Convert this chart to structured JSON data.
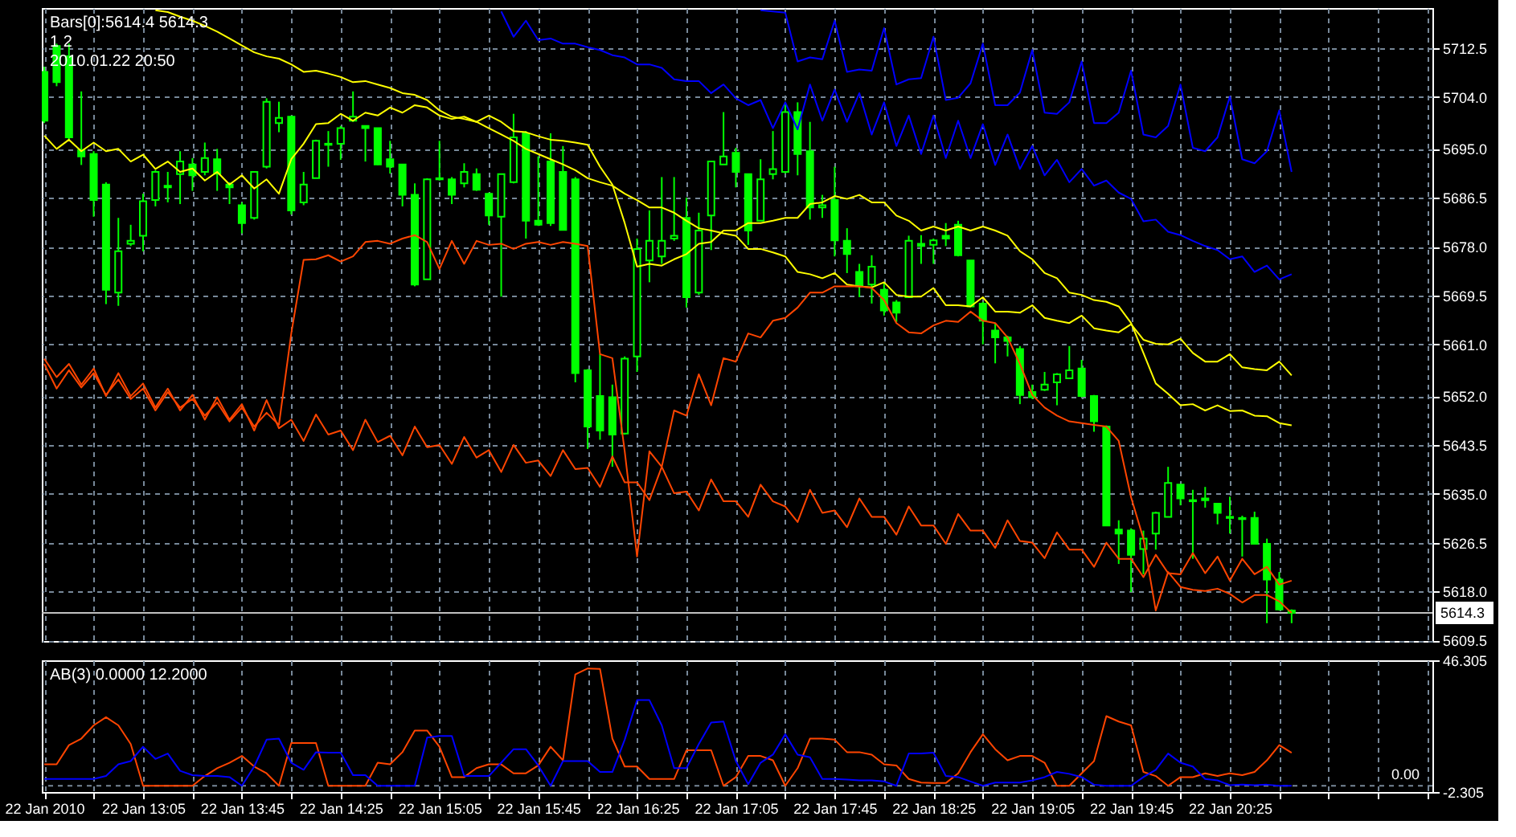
{
  "chart_data": [
    {
      "type": "candlestick",
      "x": [
        "2010-01-22T12:25",
        "2010-01-22T12:30",
        "2010-01-22T12:35",
        "2010-01-22T12:40",
        "2010-01-22T12:45",
        "2010-01-22T12:50",
        "2010-01-22T12:55",
        "2010-01-22T13:00",
        "2010-01-22T13:05",
        "2010-01-22T13:10",
        "2010-01-22T13:15",
        "2010-01-22T13:20",
        "2010-01-22T13:25",
        "2010-01-22T13:30",
        "2010-01-22T13:35",
        "2010-01-22T13:40",
        "2010-01-22T13:45",
        "2010-01-22T13:50",
        "2010-01-22T13:55",
        "2010-01-22T14:00",
        "2010-01-22T14:05",
        "2010-01-22T14:10",
        "2010-01-22T14:15",
        "2010-01-22T14:20",
        "2010-01-22T14:25",
        "2010-01-22T14:30",
        "2010-01-22T14:35",
        "2010-01-22T14:40",
        "2010-01-22T14:45",
        "2010-01-22T14:50",
        "2010-01-22T14:55",
        "2010-01-22T15:00",
        "2010-01-22T15:05",
        "2010-01-22T15:10",
        "2010-01-22T15:15",
        "2010-01-22T15:20",
        "2010-01-22T15:25",
        "2010-01-22T15:30",
        "2010-01-22T15:35",
        "2010-01-22T15:40",
        "2010-01-22T15:45",
        "2010-01-22T15:50",
        "2010-01-22T15:55",
        "2010-01-22T16:00",
        "2010-01-22T16:05",
        "2010-01-22T16:10",
        "2010-01-22T16:15",
        "2010-01-22T16:20",
        "2010-01-22T16:25",
        "2010-01-22T16:30",
        "2010-01-22T16:35",
        "2010-01-22T16:40",
        "2010-01-22T16:45",
        "2010-01-22T16:50",
        "2010-01-22T16:55",
        "2010-01-22T17:00",
        "2010-01-22T17:05",
        "2010-01-22T17:10",
        "2010-01-22T17:15",
        "2010-01-22T17:20",
        "2010-01-22T17:25",
        "2010-01-22T17:30",
        "2010-01-22T17:35",
        "2010-01-22T17:40",
        "2010-01-22T17:45",
        "2010-01-22T17:50",
        "2010-01-22T17:55",
        "2010-01-22T18:00",
        "2010-01-22T18:05",
        "2010-01-22T18:10",
        "2010-01-22T18:15",
        "2010-01-22T18:20",
        "2010-01-22T18:25",
        "2010-01-22T18:30",
        "2010-01-22T18:35",
        "2010-01-22T18:40",
        "2010-01-22T18:45",
        "2010-01-22T18:50",
        "2010-01-22T18:55",
        "2010-01-22T19:00",
        "2010-01-22T19:05",
        "2010-01-22T19:10",
        "2010-01-22T19:15",
        "2010-01-22T19:20",
        "2010-01-22T19:25",
        "2010-01-22T19:30",
        "2010-01-22T19:35",
        "2010-01-22T19:40",
        "2010-01-22T19:45",
        "2010-01-22T19:50",
        "2010-01-22T19:55",
        "2010-01-22T20:00",
        "2010-01-22T20:05",
        "2010-01-22T20:10",
        "2010-01-22T20:15",
        "2010-01-22T20:20",
        "2010-01-22T20:25",
        "2010-01-22T20:30",
        "2010-01-22T20:35",
        "2010-01-22T20:40",
        "2010-01-22T20:45",
        "2010-01-22T20:50"
      ],
      "ohlc": [
        [
          5708.4,
          5709.3,
          5699.5,
          5699.9
        ],
        [
          5712.9,
          5713.3,
          5705.9,
          5706.6
        ],
        [
          5711.1,
          5713.3,
          5696.6,
          5697.0
        ],
        [
          5694.8,
          5705.0,
          5692.2,
          5693.7
        ],
        [
          5694.1,
          5694.6,
          5683.2,
          5686.1
        ],
        [
          5688.8,
          5689.2,
          5668.0,
          5670.5
        ],
        [
          5670.0,
          5683.0,
          5667.7,
          5677.2
        ],
        [
          5678.5,
          5681.8,
          5678.1,
          5679.0
        ],
        [
          5679.9,
          5687.2,
          5677.2,
          5685.9
        ],
        [
          5686.1,
          5691.3,
          5685.0,
          5691.0
        ],
        [
          5688.3,
          5691.0,
          5685.7,
          5688.6
        ],
        [
          5690.6,
          5694.6,
          5685.4,
          5692.8
        ],
        [
          5692.3,
          5693.4,
          5687.7,
          5690.4
        ],
        [
          5691.0,
          5696.1,
          5690.4,
          5693.4
        ],
        [
          5693.2,
          5695.0,
          5687.7,
          5690.7
        ],
        [
          5688.8,
          5689.2,
          5685.4,
          5688.3
        ],
        [
          5685.2,
          5685.7,
          5680.3,
          5682.1
        ],
        [
          5683.0,
          5691.0,
          5682.7,
          5691.0
        ],
        [
          5691.9,
          5703.8,
          5691.6,
          5703.2
        ],
        [
          5699.5,
          5703.2,
          5697.9,
          5700.4
        ],
        [
          5700.6,
          5700.8,
          5683.6,
          5684.3
        ],
        [
          5685.7,
          5691.0,
          5685.2,
          5688.8
        ],
        [
          5689.9,
          5696.6,
          5689.9,
          5696.4
        ],
        [
          5695.9,
          5698.1,
          5691.9,
          5695.7
        ],
        [
          5695.9,
          5699.0,
          5693.1,
          5698.6
        ],
        [
          5699.9,
          5705.0,
          5699.7,
          5700.6
        ],
        [
          5699.0,
          5699.0,
          5692.8,
          5698.6
        ],
        [
          5698.6,
          5698.6,
          5692.2,
          5692.3
        ],
        [
          5693.2,
          5696.4,
          5690.7,
          5691.9
        ],
        [
          5692.3,
          5692.3,
          5685.0,
          5687.0
        ],
        [
          5687.0,
          5689.0,
          5671.1,
          5671.4
        ],
        [
          5672.3,
          5689.9,
          5672.3,
          5689.7
        ],
        [
          5689.7,
          5696.4,
          5689.5,
          5689.9
        ],
        [
          5689.7,
          5690.1,
          5685.4,
          5687.0
        ],
        [
          5689.0,
          5692.5,
          5688.3,
          5691.0
        ],
        [
          5690.6,
          5691.6,
          5687.7,
          5687.9
        ],
        [
          5687.2,
          5687.4,
          5681.8,
          5683.4
        ],
        [
          5683.2,
          5690.6,
          5669.3,
          5690.6
        ],
        [
          5689.2,
          5701.1,
          5689.0,
          5697.0
        ],
        [
          5697.7,
          5698.1,
          5679.4,
          5682.5
        ],
        [
          5682.5,
          5693.7,
          5681.6,
          5681.8
        ],
        [
          5692.8,
          5697.7,
          5681.6,
          5682.1
        ],
        [
          5691.0,
          5695.5,
          5680.8,
          5680.9
        ],
        [
          5689.7,
          5690.1,
          5654.4,
          5656.0
        ],
        [
          5656.5,
          5656.7,
          5642.8,
          5646.7
        ],
        [
          5652.0,
          5659.3,
          5644.4,
          5646.0
        ],
        [
          5651.8,
          5654.0,
          5639.7,
          5645.3
        ],
        [
          5645.5,
          5658.9,
          5645.3,
          5658.5
        ],
        [
          5658.9,
          5679.4,
          5656.2,
          5677.6
        ],
        [
          5675.6,
          5684.3,
          5671.8,
          5679.0
        ],
        [
          5676.3,
          5690.1,
          5675.0,
          5679.0
        ],
        [
          5679.4,
          5690.1,
          5679.0,
          5679.9
        ],
        [
          5683.0,
          5686.5,
          5667.4,
          5669.2
        ],
        [
          5670.0,
          5683.9,
          5669.6,
          5680.8
        ],
        [
          5683.4,
          5692.8,
          5677.4,
          5692.8
        ],
        [
          5692.3,
          5701.4,
          5692.3,
          5693.7
        ],
        [
          5694.3,
          5695.2,
          5688.3,
          5691.0
        ],
        [
          5690.6,
          5690.7,
          5678.3,
          5680.8
        ],
        [
          5682.5,
          5693.2,
          5682.5,
          5689.7
        ],
        [
          5690.6,
          5698.1,
          5689.7,
          5691.5
        ],
        [
          5691.0,
          5703.2,
          5690.7,
          5701.4
        ],
        [
          5701.4,
          5703.1,
          5690.4,
          5694.1
        ],
        [
          5694.6,
          5699.7,
          5682.7,
          5684.8
        ],
        [
          5684.8,
          5687.0,
          5683.0,
          5685.2
        ],
        [
          5686.1,
          5691.9,
          5676.3,
          5679.1
        ],
        [
          5679.0,
          5681.2,
          5673.4,
          5676.7
        ],
        [
          5673.6,
          5675.0,
          5669.2,
          5671.1
        ],
        [
          5671.4,
          5676.5,
          5668.1,
          5674.5
        ],
        [
          5670.5,
          5671.8,
          5666.0,
          5666.9
        ],
        [
          5668.3,
          5668.7,
          5664.9,
          5666.5
        ],
        [
          5669.2,
          5679.9,
          5669.2,
          5679.0
        ],
        [
          5678.5,
          5680.0,
          5675.0,
          5678.1
        ],
        [
          5678.3,
          5679.4,
          5675.0,
          5679.1
        ],
        [
          5679.9,
          5682.1,
          5678.1,
          5679.4
        ],
        [
          5681.8,
          5682.5,
          5676.3,
          5676.5
        ],
        [
          5675.6,
          5675.6,
          5667.6,
          5667.6
        ],
        [
          5668.1,
          5668.4,
          5661.0,
          5665.1
        ],
        [
          5663.4,
          5664.7,
          5657.7,
          5662.2
        ],
        [
          5662.2,
          5662.5,
          5658.9,
          5661.6
        ],
        [
          5660.2,
          5660.7,
          5650.6,
          5652.2
        ],
        [
          5652.7,
          5654.0,
          5651.5,
          5651.8
        ],
        [
          5653.1,
          5656.2,
          5652.9,
          5654.0
        ],
        [
          5654.4,
          5656.0,
          5650.4,
          5655.8
        ],
        [
          5655.1,
          5660.7,
          5655.1,
          5656.5
        ],
        [
          5656.8,
          5658.3,
          5651.8,
          5652.0
        ],
        [
          5652.0,
          5652.2,
          5645.8,
          5647.6
        ],
        [
          5646.7,
          5646.9,
          5629.5,
          5629.5
        ],
        [
          5628.8,
          5630.4,
          5622.8,
          5628.1
        ],
        [
          5628.6,
          5629.0,
          5617.9,
          5624.4
        ],
        [
          5625.4,
          5628.6,
          5621.0,
          5627.2
        ],
        [
          5628.1,
          5631.9,
          5625.3,
          5631.7
        ],
        [
          5631.0,
          5639.7,
          5631.0,
          5636.9
        ],
        [
          5636.6,
          5636.6,
          5633.0,
          5634.2
        ],
        [
          5633.7,
          5635.7,
          5623.7,
          5633.9
        ],
        [
          5634.2,
          5636.2,
          5632.6,
          5633.9
        ],
        [
          5633.3,
          5633.3,
          5629.7,
          5631.7
        ],
        [
          5631.0,
          5634.5,
          5628.1,
          5630.8
        ],
        [
          5630.8,
          5631.2,
          5624.1,
          5630.6
        ],
        [
          5630.8,
          5631.9,
          5626.3,
          5626.3
        ],
        [
          5626.3,
          5627.2,
          5612.5,
          5620.1
        ],
        [
          5620.1,
          5621.4,
          5614.7,
          5614.9
        ],
        [
          5614.7,
          5614.9,
          5612.5,
          5614.3
        ]
      ],
      "color": "#00ff00",
      "series": [
        {
          "type": "line",
          "color": "#ffff00",
          "values": [
            null,
            null,
            null,
            null,
            null,
            null,
            null,
            null,
            null,
            5719.1,
            5718.8,
            5718.0,
            5717.3,
            5716.4,
            5715.4,
            5714.2,
            5713.0,
            5711.8,
            5711.1,
            5710.7,
            5709.7,
            5708.4,
            5708.6,
            5708.1,
            5707.5,
            5706.6,
            5706.8,
            5706.2,
            5705.6,
            5704.7,
            5704.4,
            5703.5,
            5701.7,
            5700.6,
            5700.2,
            5699.7,
            5698.6,
            5697.5,
            5696.4,
            5695.0,
            5694.1,
            5693.2,
            5692.3,
            5691.3,
            5689.9,
            5689.2,
            5688.6,
            5687.2,
            5686.1,
            5684.8,
            5684.8,
            5683.9,
            5682.5,
            5681.2,
            5680.8,
            5680.3,
            5679.9,
            5677.6,
            5677.6,
            5677.0,
            5676.3,
            5673.6,
            5673.2,
            5672.5,
            5673.4,
            5671.4,
            5671.1,
            5670.9,
            5671.8,
            5669.6,
            5669.3,
            5669.3,
            5670.8,
            5667.8,
            5667.8,
            5667.6,
            5669.2,
            5666.7,
            5666.7,
            5666.5,
            5667.8,
            5665.6,
            5665.1,
            5664.7,
            5666.0,
            5663.8,
            5663.4,
            5663.1,
            5664.5,
            5661.8,
            5661.1,
            5661.0,
            5662.0,
            5659.5,
            5658.0,
            5658.0,
            5659.3,
            5657.0,
            5656.7,
            5656.5,
            5658.0,
            5655.6
          ]
        },
        {
          "type": "line",
          "color": "#ffff00",
          "values": [
            5697.3,
            5695.0,
            5696.6,
            5694.6,
            5696.1,
            5694.6,
            5695.0,
            5692.8,
            5694.0,
            5691.5,
            5692.8,
            5691.0,
            5691.6,
            5689.5,
            5691.0,
            5688.8,
            5690.4,
            5688.1,
            5689.7,
            5687.2,
            5693.2,
            5695.9,
            5699.3,
            5699.5,
            5701.1,
            5699.9,
            5701.3,
            5700.8,
            5702.2,
            5701.3,
            5702.6,
            5702.2,
            5700.8,
            5700.2,
            5700.6,
            5699.7,
            5700.8,
            5699.7,
            5698.1,
            5697.9,
            5697.2,
            5696.6,
            5696.4,
            5696.1,
            5695.7,
            5691.9,
            5688.8,
            5682.1,
            5674.5,
            5675.0,
            5674.7,
            5675.8,
            5676.7,
            5678.5,
            5678.8,
            5680.8,
            5680.8,
            5682.1,
            5682.1,
            5682.5,
            5683.0,
            5683.0,
            5685.4,
            5685.7,
            5686.8,
            5686.3,
            5687.0,
            5685.7,
            5685.7,
            5683.4,
            5682.5,
            5680.8,
            5681.5,
            5680.8,
            5681.5,
            5680.8,
            5681.5,
            5680.8,
            5679.9,
            5677.2,
            5675.8,
            5673.4,
            5672.5,
            5670.0,
            5669.6,
            5668.7,
            5668.4,
            5667.6,
            5664.7,
            5659.5,
            5654.2,
            5652.4,
            5650.4,
            5650.6,
            5649.5,
            5650.4,
            5649.4,
            5649.5,
            5648.6,
            5648.5,
            5647.3,
            5646.9
          ]
        },
        {
          "type": "line",
          "color": "#0000ff",
          "values": [
            null,
            null,
            null,
            null,
            null,
            null,
            null,
            null,
            null,
            null,
            null,
            null,
            null,
            null,
            null,
            null,
            null,
            null,
            null,
            null,
            null,
            null,
            null,
            null,
            null,
            null,
            null,
            null,
            null,
            null,
            null,
            null,
            null,
            null,
            null,
            null,
            null,
            5718.9,
            5714.5,
            5717.3,
            5713.9,
            5714.2,
            5713.3,
            5713.3,
            5712.7,
            5712.2,
            5711.3,
            5710.9,
            5709.7,
            5709.7,
            5709.1,
            5707.1,
            5706.8,
            5706.8,
            5704.7,
            5706.2,
            5703.8,
            5702.6,
            5703.5,
            5698.6,
            5703.1,
            5698.4,
            5706.2,
            5699.9,
            5705.3,
            5699.7,
            5704.7,
            5697.5,
            5703.1,
            5695.5,
            5700.8,
            5694.1,
            5700.8,
            5693.4,
            5699.9,
            5693.4,
            5699.3,
            5692.2,
            5697.5,
            5691.5,
            5695.5,
            5690.4,
            5693.1,
            5689.2,
            5691.5,
            5688.6,
            5689.5,
            5687.4,
            5686.3,
            5682.4,
            5682.7,
            5680.6,
            5680.0,
            5679.0,
            5678.1,
            5677.4,
            5675.8,
            5676.3,
            5673.6,
            5674.7,
            5672.3,
            5673.2
          ]
        },
        {
          "type": "line",
          "color": "#0000ff",
          "values": [
            null,
            null,
            null,
            null,
            null,
            null,
            null,
            null,
            null,
            null,
            null,
            null,
            null,
            null,
            null,
            null,
            null,
            null,
            null,
            null,
            null,
            null,
            null,
            null,
            null,
            null,
            null,
            null,
            null,
            null,
            null,
            null,
            null,
            null,
            null,
            null,
            null,
            null,
            null,
            null,
            null,
            null,
            null,
            null,
            null,
            null,
            null,
            null,
            null,
            null,
            null,
            null,
            null,
            null,
            null,
            null,
            null,
            null,
            5719.1,
            5718.9,
            5718.7,
            5710.2,
            5710.9,
            5710.6,
            5717.3,
            5708.4,
            5708.8,
            5708.6,
            5716.0,
            5706.2,
            5707.1,
            5707.3,
            5714.5,
            5703.5,
            5703.9,
            5706.4,
            5713.3,
            5702.6,
            5702.6,
            5704.8,
            5712.2,
            5701.3,
            5701.1,
            5703.1,
            5710.2,
            5699.5,
            5699.5,
            5701.3,
            5708.6,
            5697.5,
            5697.0,
            5699.0,
            5706.2,
            5695.2,
            5694.6,
            5697.0,
            5704.1,
            5693.2,
            5692.5,
            5694.6,
            5701.7,
            5691.0
          ]
        },
        {
          "type": "line",
          "color": "#ff4500",
          "values": [
            5657.6,
            5653.3,
            5656.5,
            5653.5,
            5656.0,
            5652.2,
            5654.9,
            5651.5,
            5653.3,
            5649.5,
            5652.7,
            5650.0,
            5651.5,
            5648.6,
            5650.9,
            5647.6,
            5650.0,
            5646.7,
            5649.1,
            5647.0,
            5662.9,
            5675.7,
            5675.8,
            5676.5,
            5675.4,
            5676.3,
            5678.8,
            5679.0,
            5678.5,
            5679.4,
            5680.0,
            5678.8,
            5674.1,
            5679.0,
            5675.0,
            5679.0,
            5678.3,
            5678.5,
            5677.6,
            5678.5,
            5678.8,
            5678.3,
            5678.8,
            5678.5,
            5678.1,
            5659.3,
            5658.6,
            5642.4,
            5624.1,
            5642.4,
            5639.7,
            5649.5,
            5648.6,
            5655.8,
            5650.4,
            5658.6,
            5658.0,
            5662.9,
            5662.2,
            5665.1,
            5665.6,
            5667.4,
            5670.0,
            5670.0,
            5671.1,
            5671.1,
            5671.1,
            5670.8,
            5668.7,
            5664.7,
            5663.1,
            5662.9,
            5664.3,
            5665.1,
            5664.9,
            5666.7,
            5665.1,
            5664.7,
            5662.2,
            5657.6,
            5652.2,
            5650.0,
            5648.6,
            5647.6,
            5647.3,
            5647.0,
            5646.7,
            5644.2,
            5634.4,
            5627.2,
            5614.7,
            5621.4,
            5618.8,
            5618.3,
            5618.1,
            5618.5,
            5617.6,
            5616.1,
            5617.4,
            5617.4,
            5616.3,
            5614.3
          ]
        },
        {
          "type": "line",
          "color": "#ff4500",
          "values": [
            5658.5,
            5655.3,
            5657.6,
            5654.0,
            5656.8,
            5652.0,
            5656.0,
            5652.0,
            5654.2,
            5650.0,
            5653.3,
            5649.5,
            5652.2,
            5647.9,
            5651.8,
            5647.9,
            5650.6,
            5646.0,
            5651.3,
            5646.4,
            5647.9,
            5644.2,
            5648.8,
            5645.3,
            5646.0,
            5642.6,
            5647.9,
            5644.0,
            5645.1,
            5641.7,
            5646.7,
            5643.1,
            5643.5,
            5640.2,
            5644.9,
            5641.3,
            5642.6,
            5638.8,
            5643.5,
            5640.4,
            5640.8,
            5638.1,
            5642.6,
            5639.3,
            5639.5,
            5636.2,
            5641.5,
            5637.0,
            5637.0,
            5633.9,
            5639.7,
            5635.1,
            5635.4,
            5632.1,
            5637.5,
            5633.7,
            5633.7,
            5631.0,
            5636.6,
            5633.7,
            5632.8,
            5630.1,
            5635.7,
            5631.7,
            5632.1,
            5629.2,
            5634.2,
            5631.0,
            5631.0,
            5627.9,
            5632.8,
            5629.5,
            5629.5,
            5626.3,
            5631.5,
            5628.6,
            5628.6,
            5625.6,
            5630.4,
            5626.8,
            5626.5,
            5623.8,
            5628.3,
            5625.3,
            5625.3,
            5622.3,
            5626.5,
            5623.7,
            5623.7,
            5620.5,
            5624.4,
            5621.2,
            5621.0,
            5624.7,
            5621.2,
            5624.1,
            5619.9,
            5623.7,
            5621.0,
            5622.3,
            5619.2,
            5619.9
          ]
        }
      ],
      "annotations": [
        "Bars[0]:5614.4 5614.3",
        "1 2",
        "2010.01.22 20:50"
      ],
      "ref_lines": [
        {
          "axis": "y",
          "value": 5614.3,
          "label": "5614.3",
          "color": "#c0c0c0"
        }
      ],
      "xlim": [
        "2010-01-22T12:24",
        "2010-01-22T21:47"
      ],
      "ylim": [
        5609.4,
        5719.5
      ],
      "xticks": [
        {
          "value": "2010-01-22T12:25",
          "label": null
        },
        {
          "value": "2010-01-22T12:45",
          "label": null
        },
        {
          "value": "2010-01-22T13:05",
          "label": null
        },
        {
          "value": "2010-01-22T13:25",
          "label": null
        },
        {
          "value": "2010-01-22T13:45",
          "label": null
        },
        {
          "value": "2010-01-22T14:05",
          "label": null
        },
        {
          "value": "2010-01-22T14:25",
          "label": null
        },
        {
          "value": "2010-01-22T14:45",
          "label": null
        },
        {
          "value": "2010-01-22T15:05",
          "label": null
        },
        {
          "value": "2010-01-22T15:25",
          "label": null
        },
        {
          "value": "2010-01-22T15:45",
          "label": null
        },
        {
          "value": "2010-01-22T16:05",
          "label": null
        },
        {
          "value": "2010-01-22T16:25",
          "label": null
        },
        {
          "value": "2010-01-22T16:45",
          "label": null
        },
        {
          "value": "2010-01-22T17:05",
          "label": null
        },
        {
          "value": "2010-01-22T17:25",
          "label": null
        },
        {
          "value": "2010-01-22T17:45",
          "label": null
        },
        {
          "value": "2010-01-22T18:05",
          "label": null
        },
        {
          "value": "2010-01-22T18:25",
          "label": null
        },
        {
          "value": "2010-01-22T18:45",
          "label": null
        },
        {
          "value": "2010-01-22T19:05",
          "label": null
        },
        {
          "value": "2010-01-22T19:25",
          "label": null
        },
        {
          "value": "2010-01-22T19:45",
          "label": null
        },
        {
          "value": "2010-01-22T20:05",
          "label": null
        },
        {
          "value": "2010-01-22T20:25",
          "label": null
        },
        {
          "value": "2010-01-22T20:45",
          "label": null
        },
        {
          "value": "2010-01-22T21:05",
          "label": null
        },
        {
          "value": "2010-01-22T21:25",
          "label": null
        },
        {
          "value": "2010-01-22T21:45",
          "label": null
        }
      ],
      "yticks": [
        5712.5,
        {
          "value": 5704,
          "label": "5704.0"
        },
        {
          "value": 5695,
          "label": "5695.0"
        },
        5686.5,
        {
          "value": 5678,
          "label": "5678.0"
        },
        5669.5,
        {
          "value": 5661,
          "label": "5661.0"
        },
        {
          "value": 5652,
          "label": "5652.0"
        },
        5643.5,
        {
          "value": 5635,
          "label": "5635.0"
        },
        5626.5,
        {
          "value": 5618,
          "label": "5618.0"
        },
        5609.5
      ],
      "grid": true,
      "tick_labels": "y"
    },
    {
      "type": "line",
      "x": [
        "2010-01-22T12:25",
        "2010-01-22T12:30",
        "2010-01-22T12:35",
        "2010-01-22T12:40",
        "2010-01-22T12:45",
        "2010-01-22T12:50",
        "2010-01-22T12:55",
        "2010-01-22T13:00",
        "2010-01-22T13:05",
        "2010-01-22T13:10",
        "2010-01-22T13:15",
        "2010-01-22T13:20",
        "2010-01-22T13:25",
        "2010-01-22T13:30",
        "2010-01-22T13:35",
        "2010-01-22T13:40",
        "2010-01-22T13:45",
        "2010-01-22T13:50",
        "2010-01-22T13:55",
        "2010-01-22T14:00",
        "2010-01-22T14:05",
        "2010-01-22T14:10",
        "2010-01-22T14:15",
        "2010-01-22T14:20",
        "2010-01-22T14:25",
        "2010-01-22T14:30",
        "2010-01-22T14:35",
        "2010-01-22T14:40",
        "2010-01-22T14:45",
        "2010-01-22T14:50",
        "2010-01-22T14:55",
        "2010-01-22T15:00",
        "2010-01-22T15:05",
        "2010-01-22T15:10",
        "2010-01-22T15:15",
        "2010-01-22T15:20",
        "2010-01-22T15:25",
        "2010-01-22T15:30",
        "2010-01-22T15:35",
        "2010-01-22T15:40",
        "2010-01-22T15:45",
        "2010-01-22T15:50",
        "2010-01-22T15:55",
        "2010-01-22T16:00",
        "2010-01-22T16:05",
        "2010-01-22T16:10",
        "2010-01-22T16:15",
        "2010-01-22T16:20",
        "2010-01-22T16:25",
        "2010-01-22T16:30",
        "2010-01-22T16:35",
        "2010-01-22T16:40",
        "2010-01-22T16:45",
        "2010-01-22T16:50",
        "2010-01-22T16:55",
        "2010-01-22T17:00",
        "2010-01-22T17:05",
        "2010-01-22T17:10",
        "2010-01-22T17:15",
        "2010-01-22T17:20",
        "2010-01-22T17:25",
        "2010-01-22T17:30",
        "2010-01-22T17:35",
        "2010-01-22T17:40",
        "2010-01-22T17:45",
        "2010-01-22T17:50",
        "2010-01-22T17:55",
        "2010-01-22T18:00",
        "2010-01-22T18:05",
        "2010-01-22T18:10",
        "2010-01-22T18:15",
        "2010-01-22T18:20",
        "2010-01-22T18:25",
        "2010-01-22T18:30",
        "2010-01-22T18:35",
        "2010-01-22T18:40",
        "2010-01-22T18:45",
        "2010-01-22T18:50",
        "2010-01-22T18:55",
        "2010-01-22T19:00",
        "2010-01-22T19:05",
        "2010-01-22T19:10",
        "2010-01-22T19:15",
        "2010-01-22T19:20",
        "2010-01-22T19:25",
        "2010-01-22T19:30",
        "2010-01-22T19:35",
        "2010-01-22T19:40",
        "2010-01-22T19:45",
        "2010-01-22T19:50",
        "2010-01-22T19:55",
        "2010-01-22T20:00",
        "2010-01-22T20:05",
        "2010-01-22T20:10",
        "2010-01-22T20:15",
        "2010-01-22T20:20",
        "2010-01-22T20:25",
        "2010-01-22T20:30",
        "2010-01-22T20:35",
        "2010-01-22T20:40",
        "2010-01-22T20:45",
        "2010-01-22T20:50"
      ],
      "series": [
        {
          "color": "#ff4500",
          "values": [
            7.9,
            7.9,
            15.0,
            17.4,
            22.3,
            25.3,
            22.3,
            15.4,
            0.0,
            0.0,
            0.0,
            0.0,
            0.0,
            3.6,
            6.5,
            8.5,
            11.0,
            7.1,
            4.6,
            0.0,
            15.8,
            15.8,
            15.8,
            0.0,
            0.0,
            0.0,
            0.0,
            8.5,
            7.9,
            12.4,
            20.4,
            20.4,
            14.4,
            3.2,
            3.2,
            6.5,
            7.9,
            7.9,
            4.6,
            4.6,
            7.5,
            14.4,
            9.4,
            41.1,
            43.3,
            43.1,
            17.4,
            7.1,
            7.1,
            2.5,
            2.5,
            2.5,
            13.1,
            13.1,
            13.1,
            0.0,
            3.2,
            11.0,
            11.0,
            9.4,
            0.0,
            6.5,
            17.4,
            17.4,
            17.0,
            12.4,
            12.4,
            11.5,
            7.9,
            7.5,
            2.5,
            1.2,
            1.0,
            1.0,
            4.6,
            12.4,
            19.0,
            13.5,
            9.4,
            11.0,
            11.0,
            8.5,
            0.0,
            0.0,
            4.6,
            9.1,
            25.7,
            23.7,
            22.3,
            5.1,
            3.6,
            0.0,
            3.2,
            3.2,
            4.6,
            3.6,
            4.6,
            3.9,
            5.1,
            9.4,
            15.0,
            12.2
          ]
        },
        {
          "color": "#0000ff",
          "values": [
            2.5,
            2.5,
            2.5,
            2.5,
            2.5,
            3.6,
            7.9,
            9.1,
            14.4,
            9.9,
            11.9,
            5.5,
            3.9,
            3.6,
            3.6,
            3.2,
            0.0,
            7.1,
            17.0,
            17.4,
            8.5,
            5.9,
            12.4,
            12.2,
            12.2,
            3.9,
            3.9,
            0.0,
            0.0,
            0.0,
            0.0,
            17.8,
            18.4,
            18.4,
            3.6,
            3.6,
            3.6,
            8.5,
            13.5,
            13.5,
            7.5,
            0.0,
            9.1,
            9.1,
            9.1,
            5.1,
            5.1,
            17.0,
            31.6,
            31.6,
            22.3,
            6.5,
            6.5,
            15.4,
            23.3,
            23.7,
            9.1,
            0.6,
            8.5,
            11.5,
            19.0,
            11.5,
            10.5,
            2.5,
            2.5,
            2.3,
            2.0,
            2.0,
            1.6,
            0.0,
            11.9,
            11.9,
            12.2,
            3.6,
            3.2,
            1.6,
            0.0,
            1.2,
            1.2,
            1.2,
            2.0,
            3.2,
            5.1,
            4.4,
            3.2,
            0.4,
            0.0,
            0.0,
            0.0,
            3.2,
            5.9,
            11.9,
            8.5,
            7.1,
            2.5,
            2.0,
            0.2,
            0.4,
            0.2,
            0.4,
            0.0,
            0.0
          ]
        }
      ],
      "annotations": [
        "AB(3) 0.0000 12.2000"
      ],
      "ref_lines": [
        {
          "axis": "y",
          "value": 0,
          "label": "0.00",
          "line_style": "dashed",
          "color": "#778899"
        }
      ],
      "xlim": [
        "2010-01-22T12:24",
        "2010-01-22T21:47"
      ],
      "ylim": [
        -2.305,
        46.305
      ],
      "xticks": [
        {
          "value": "2010-01-22T12:25",
          "label": "22 Jan 2010"
        },
        {
          "value": "2010-01-22T12:45",
          "label": null
        },
        {
          "value": "2010-01-22T13:05",
          "label": "22 Jan 13:05"
        },
        {
          "value": "2010-01-22T13:25",
          "label": null
        },
        {
          "value": "2010-01-22T13:45",
          "label": "22 Jan 13:45"
        },
        {
          "value": "2010-01-22T14:05",
          "label": null
        },
        {
          "value": "2010-01-22T14:25",
          "label": "22 Jan 14:25"
        },
        {
          "value": "2010-01-22T14:45",
          "label": null
        },
        {
          "value": "2010-01-22T15:05",
          "label": "22 Jan 15:05"
        },
        {
          "value": "2010-01-22T15:25",
          "label": null
        },
        {
          "value": "2010-01-22T15:45",
          "label": "22 Jan 15:45"
        },
        {
          "value": "2010-01-22T16:05",
          "label": null
        },
        {
          "value": "2010-01-22T16:25",
          "label": "22 Jan 16:25"
        },
        {
          "value": "2010-01-22T16:45",
          "label": null
        },
        {
          "value": "2010-01-22T17:05",
          "label": "22 Jan 17:05"
        },
        {
          "value": "2010-01-22T17:25",
          "label": null
        },
        {
          "value": "2010-01-22T17:45",
          "label": "22 Jan 17:45"
        },
        {
          "value": "2010-01-22T18:05",
          "label": null
        },
        {
          "value": "2010-01-22T18:25",
          "label": "22 Jan 18:25"
        },
        {
          "value": "2010-01-22T18:45",
          "label": null
        },
        {
          "value": "2010-01-22T19:05",
          "label": "22 Jan 19:05"
        },
        {
          "value": "2010-01-22T19:25",
          "label": null
        },
        {
          "value": "2010-01-22T19:45",
          "label": "22 Jan 19:45"
        },
        {
          "value": "2010-01-22T20:05",
          "label": null
        },
        {
          "value": "2010-01-22T20:25",
          "label": "22 Jan 20:25"
        },
        {
          "value": "2010-01-22T20:45",
          "label": null
        },
        {
          "value": "2010-01-22T21:05",
          "label": null
        },
        {
          "value": "2010-01-22T21:25",
          "label": null
        },
        {
          "value": "2010-01-22T21:45",
          "label": null
        }
      ],
      "yticks": [
        -2.305,
        46.305
      ],
      "grid": "x"
    }
  ]
}
